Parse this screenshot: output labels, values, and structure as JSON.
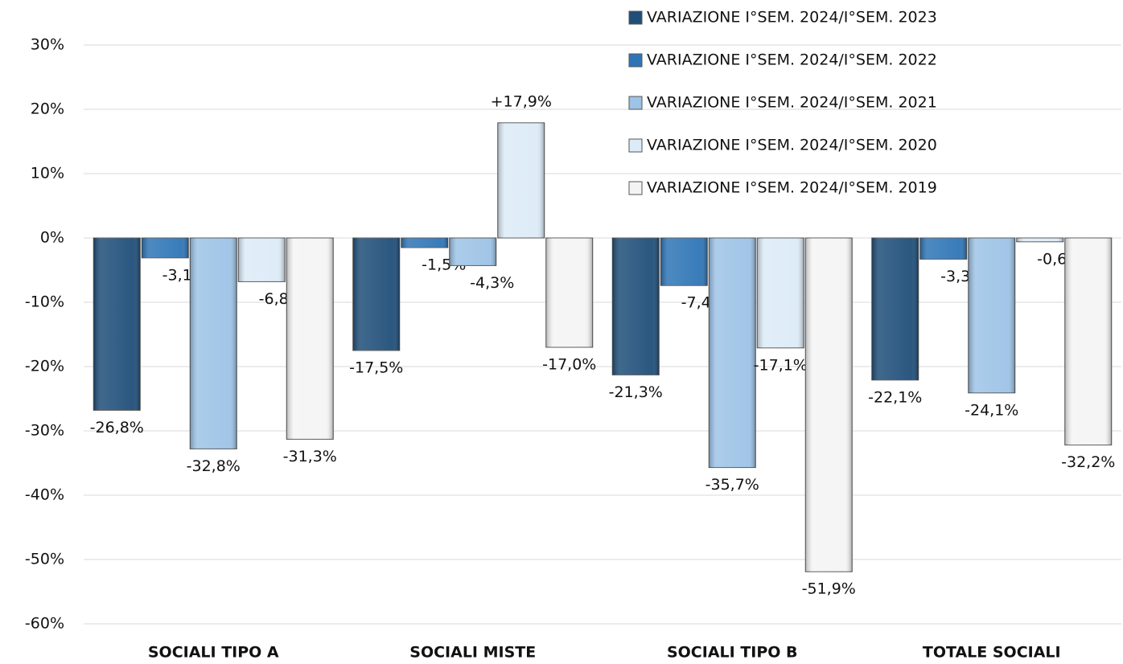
{
  "chart_data": {
    "type": "bar",
    "categories": [
      "SOCIALI TIPO A",
      "SOCIALI MISTE",
      "SOCIALI TIPO B",
      "TOTALE SOCIALI"
    ],
    "series": [
      {
        "name": "VARIAZIONE I°SEM. 2024/I°SEM. 2023",
        "color": "#1f4e79",
        "values": [
          -26.8,
          -17.5,
          -21.3,
          -22.1
        ],
        "value_labels": [
          "-26,8%",
          "-17,5%",
          "-21,3%",
          "-22,1%"
        ]
      },
      {
        "name": "VARIAZIONE I°SEM. 2024/I°SEM. 2022",
        "color": "#2e75b6",
        "values": [
          -3.1,
          -1.5,
          -7.4,
          -3.3
        ],
        "value_labels": [
          "-3,1%",
          "-1,5%",
          "-7,4%",
          "-3,3%"
        ]
      },
      {
        "name": "VARIAZIONE I°SEM. 2024/I°SEM. 2021",
        "color": "#9dc3e6",
        "values": [
          -32.8,
          -4.3,
          -35.7,
          -24.1
        ],
        "value_labels": [
          "-32,8%",
          "-4,3%",
          "-35,7%",
          "-24,1%"
        ]
      },
      {
        "name": "VARIAZIONE I°SEM. 2024/I°SEM. 2020",
        "color": "#dcebf7",
        "values": [
          -6.8,
          17.9,
          -17.1,
          -0.6
        ],
        "value_labels": [
          "-6,8%",
          "+17,9%",
          "-17,1%",
          "-0,6%"
        ]
      },
      {
        "name": "VARIAZIONE I°SEM. 2024/I°SEM. 2019",
        "color": "#f4f4f4",
        "values": [
          -31.3,
          -17.0,
          -51.9,
          -32.2
        ],
        "value_labels": [
          "-31,3%",
          "-17,0%",
          "-51,9%",
          "-32,2%"
        ]
      }
    ],
    "ylim": [
      -60,
      30
    ],
    "yticks": [
      {
        "value": -60,
        "label": "-60%"
      },
      {
        "value": -50,
        "label": "-50%"
      },
      {
        "value": -40,
        "label": "-40%"
      },
      {
        "value": -30,
        "label": "-30%"
      },
      {
        "value": -20,
        "label": "-20%"
      },
      {
        "value": -10,
        "label": "-10%"
      },
      {
        "value": 0,
        "label": "0%"
      },
      {
        "value": 10,
        "label": "10%"
      },
      {
        "value": 20,
        "label": "20%"
      },
      {
        "value": 30,
        "label": "30%"
      }
    ],
    "grid": true,
    "legend": "upper right"
  }
}
